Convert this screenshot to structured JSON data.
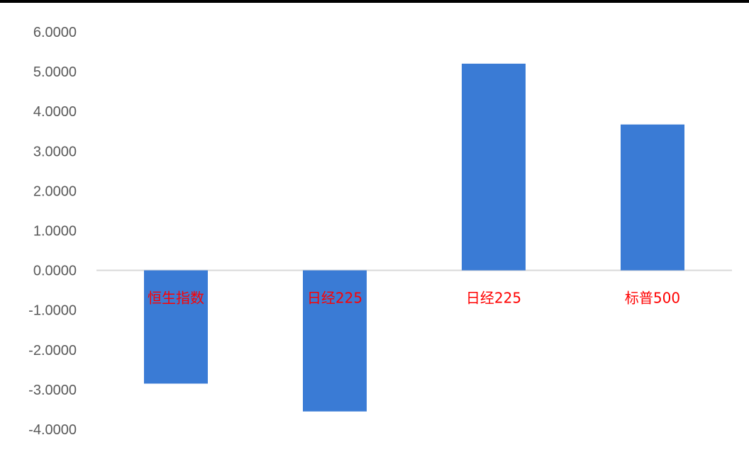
{
  "chart_data": {
    "type": "bar",
    "categories": [
      "恒生指数",
      "日经225",
      "日经225",
      "标普500"
    ],
    "values": [
      -2.85,
      -3.55,
      5.2,
      3.67
    ],
    "title": "",
    "xlabel": "",
    "ylabel": "",
    "ylim": [
      -4,
      6
    ],
    "yticks": [
      "6.0000",
      "5.0000",
      "4.0000",
      "3.0000",
      "2.0000",
      "1.0000",
      "0.0000",
      "-1.0000",
      "-2.0000",
      "-3.0000",
      "-4.0000"
    ],
    "grid": false,
    "legend": "none",
    "colors": {
      "bar": "#3A7BD5",
      "category_label": "#FF0000",
      "axis_line": "#D9D9D9",
      "tick_label": "#595959",
      "top_rule": "#000000"
    }
  }
}
